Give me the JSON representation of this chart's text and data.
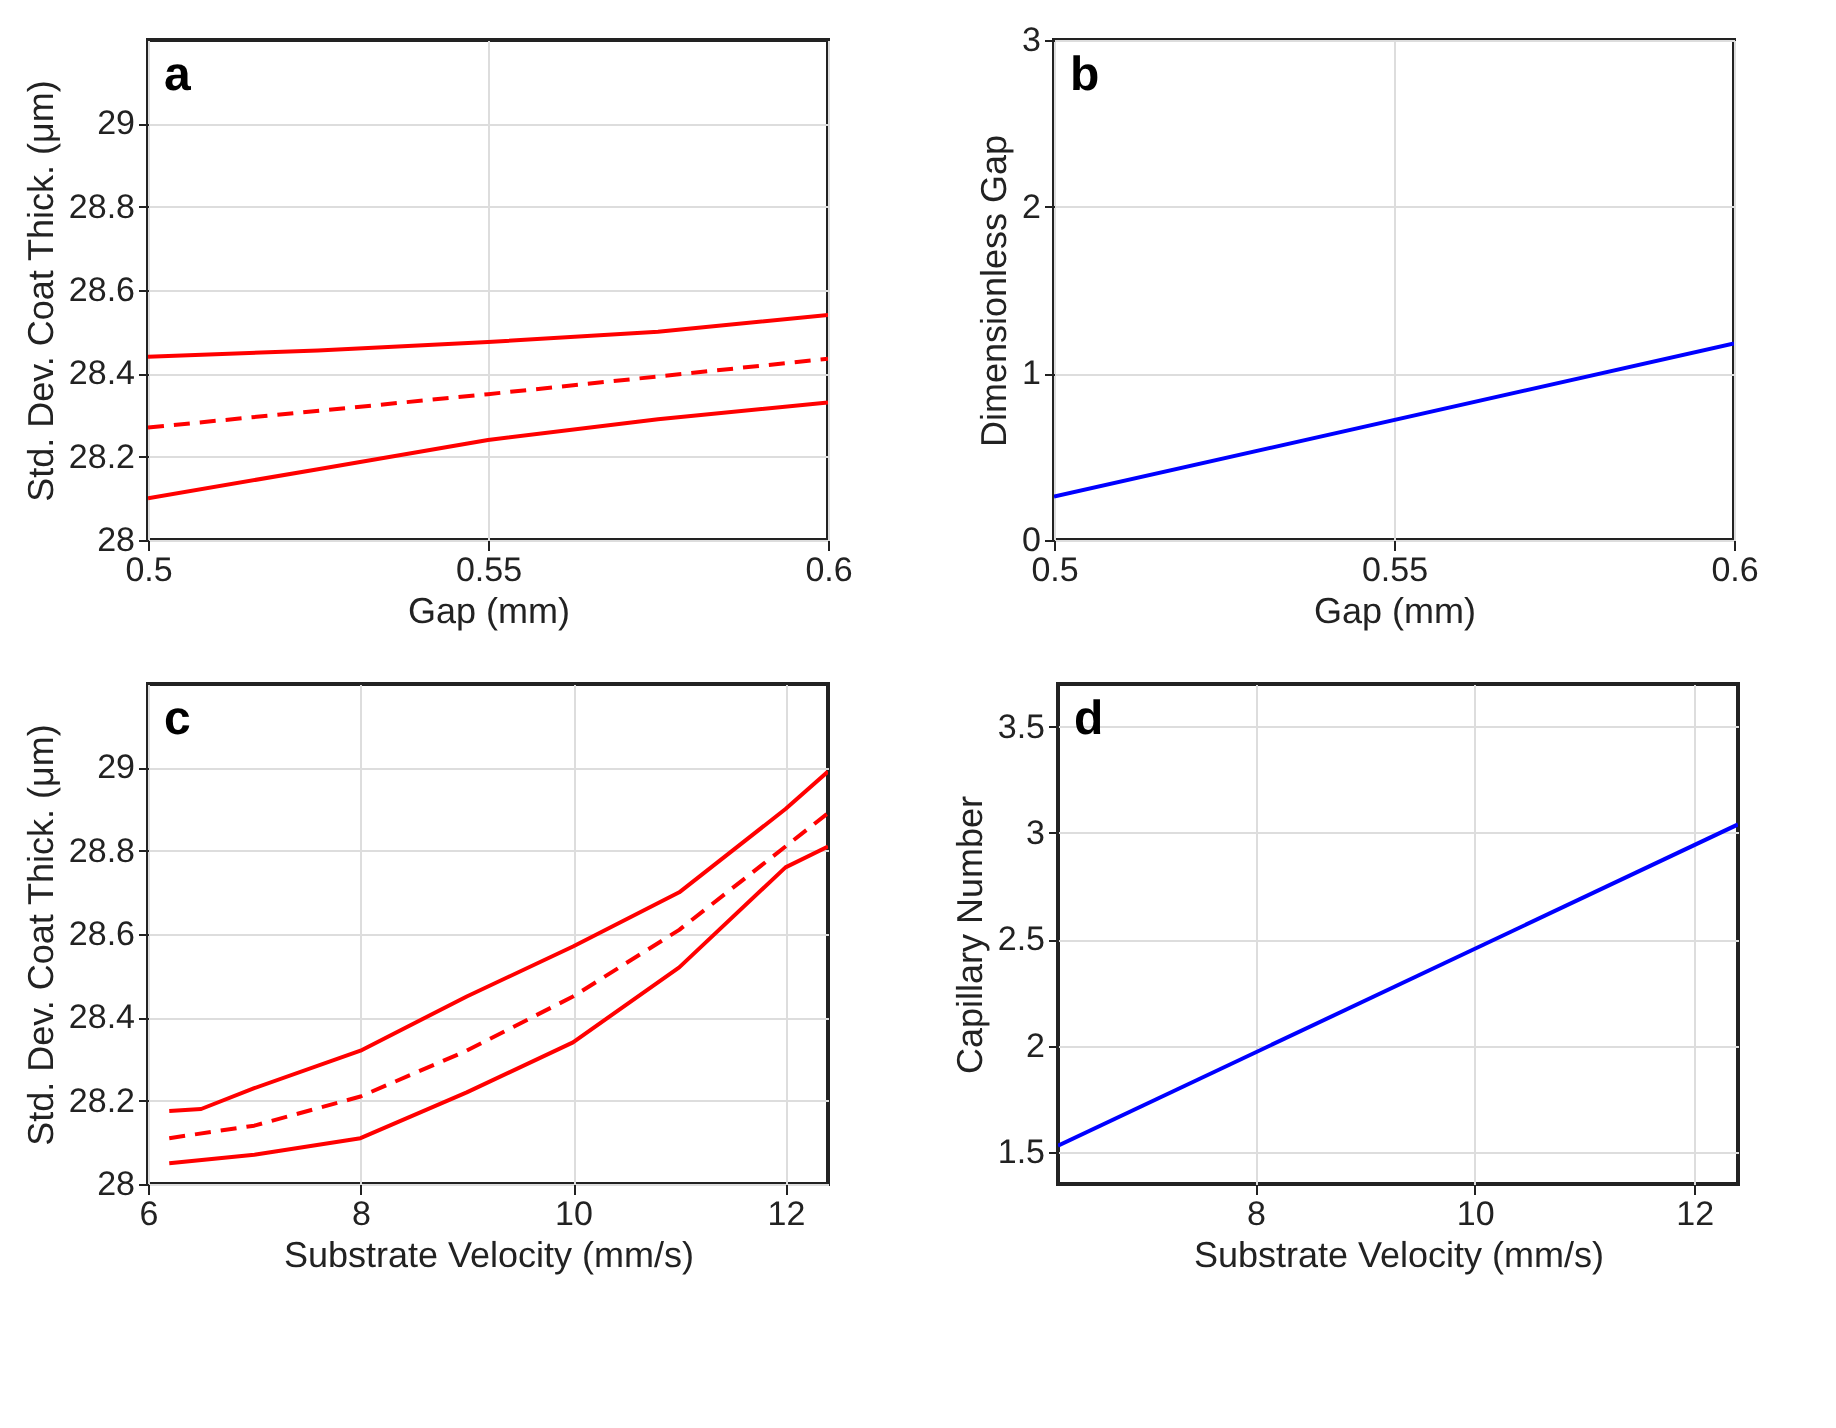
{
  "chart_data": [
    {
      "type": "line",
      "annotations": [
        "a"
      ],
      "xlabel": "Gap (mm)",
      "ylabel": "Std. Dev. Coat Thick. (μm)",
      "xlim": [
        0.5,
        0.6
      ],
      "ylim": [
        28,
        29.2
      ],
      "xticks": [
        0.5,
        0.55,
        0.6
      ],
      "yticks": [
        28,
        28.2,
        28.4,
        28.6,
        28.8,
        29
      ],
      "grid": true,
      "series": [
        {
          "color": "#ff0000",
          "line_style": "solid",
          "x": [
            0.5,
            0.525,
            0.55,
            0.575,
            0.6
          ],
          "values": [
            28.44,
            28.455,
            28.475,
            28.5,
            28.54
          ]
        },
        {
          "color": "#ff0000",
          "line_style": "dashed",
          "x": [
            0.5,
            0.55,
            0.6
          ],
          "values": [
            28.27,
            28.35,
            28.435
          ]
        },
        {
          "color": "#ff0000",
          "line_style": "solid",
          "x": [
            0.5,
            0.525,
            0.55,
            0.575,
            0.6
          ],
          "values": [
            28.1,
            28.17,
            28.24,
            28.29,
            28.33
          ]
        }
      ]
    },
    {
      "type": "line",
      "annotations": [
        "b"
      ],
      "xlabel": "Gap (mm)",
      "ylabel": "Dimensionless Gap",
      "xlim": [
        0.5,
        0.6
      ],
      "ylim": [
        0,
        3
      ],
      "xticks": [
        0.5,
        0.55,
        0.6
      ],
      "yticks": [
        0,
        1,
        2,
        3
      ],
      "grid": true,
      "series": [
        {
          "color": "#0000ff",
          "line_style": "solid",
          "x": [
            0.5,
            0.6
          ],
          "values": [
            0.26,
            1.18
          ]
        }
      ]
    },
    {
      "type": "line",
      "annotations": [
        "c"
      ],
      "xlabel": "Substrate Velocity (mm/s)",
      "ylabel": "Std. Dev. Coat Thick. (μm)",
      "xlim": [
        6,
        12.4
      ],
      "ylim": [
        28,
        29.2
      ],
      "xticks": [
        6,
        8,
        10,
        12
      ],
      "yticks": [
        28,
        28.2,
        28.4,
        28.6,
        28.8,
        29
      ],
      "grid": true,
      "series": [
        {
          "color": "#ff0000",
          "line_style": "solid",
          "x": [
            6.2,
            6.5,
            7,
            8,
            9,
            10,
            11,
            12,
            12.4
          ],
          "values": [
            28.175,
            28.18,
            28.23,
            28.32,
            28.45,
            28.57,
            28.7,
            28.9,
            28.99
          ]
        },
        {
          "color": "#ff0000",
          "line_style": "dashed",
          "x": [
            6.2,
            7,
            8,
            9,
            10,
            11,
            12,
            12.4
          ],
          "values": [
            28.11,
            28.14,
            28.21,
            28.32,
            28.45,
            28.61,
            28.81,
            28.89
          ]
        },
        {
          "color": "#ff0000",
          "line_style": "solid",
          "x": [
            6.2,
            7,
            8,
            9,
            10,
            11,
            12,
            12.4
          ],
          "values": [
            28.05,
            28.07,
            28.11,
            28.22,
            28.34,
            28.52,
            28.76,
            28.81
          ]
        }
      ]
    },
    {
      "type": "line",
      "annotations": [
        "d"
      ],
      "xlabel": "Substrate Velocity (mm/s)",
      "ylabel": "Capillary Number",
      "xlim": [
        6.2,
        12.4
      ],
      "ylim": [
        1.35,
        3.7
      ],
      "xticks": [
        8,
        10,
        12
      ],
      "yticks": [
        1.5,
        2,
        2.5,
        3,
        3.5
      ],
      "grid": true,
      "series": [
        {
          "color": "#0000ff",
          "line_style": "solid",
          "x": [
            6.2,
            12.4
          ],
          "values": [
            1.53,
            3.04
          ]
        }
      ]
    }
  ]
}
